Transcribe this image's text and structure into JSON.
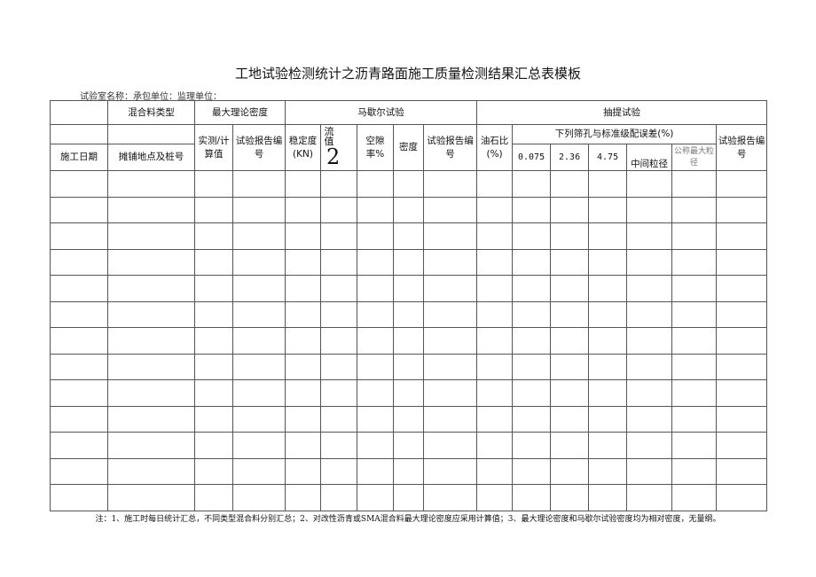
{
  "title": "工地试验检测统计之沥青路面施工质量检测结果汇总表模板",
  "subtitle": "试验室名称：承包单位：监理单位：",
  "headers": {
    "mix_type": "混合料类型",
    "max_density": "最大理论密度",
    "marshall": "马歇尔试验",
    "extraction": "抽提试验",
    "date": "施工日期",
    "location": "摊铺地点及桩号",
    "measured": "实测/计算值",
    "report_no": "试验报告编号",
    "stability": "稳定度(KN)",
    "flow_label": "流值",
    "flow_symbol": "2",
    "void": "空隙率%",
    "density": "密度",
    "asphalt_ratio": "油石比(%)",
    "sieve_dev": "下列筛孔与标准级配误差(%)",
    "sieves": [
      "0.075",
      "2.36",
      "4.75",
      "中间粒径",
      "公称最大粒径"
    ]
  },
  "body_rows": 13,
  "note": "注：1、施工时每日统计汇总，不同类型混合料分别汇总；2、对改性沥青或SMA混合料最大理论密度应采用计算值；3、最大理论密度和马歇尔试验密度均为相对密度，无量纲。"
}
